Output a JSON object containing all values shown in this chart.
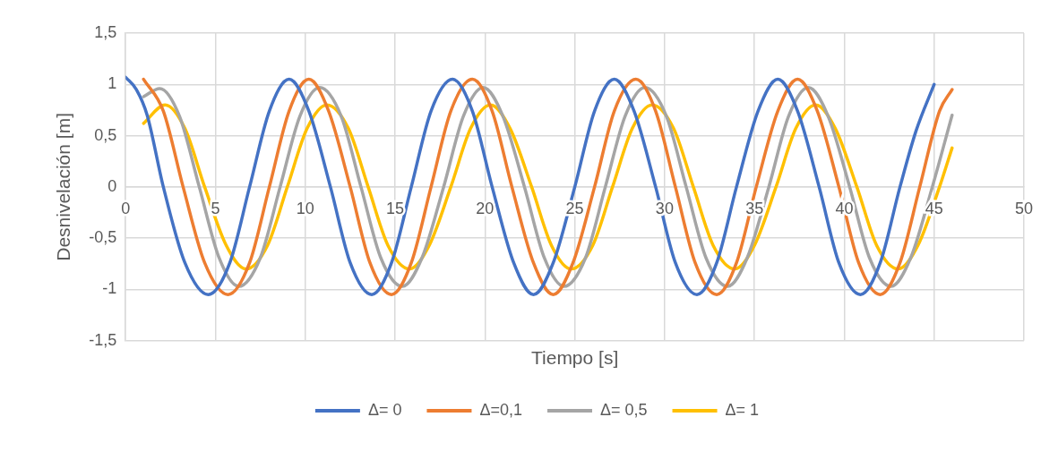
{
  "chart_data": {
    "type": "line",
    "xlabel": "Tiempo [s]",
    "ylabel": "Desnivelación [m]",
    "xlim": [
      0,
      50
    ],
    "xticks": [
      0,
      5,
      10,
      15,
      20,
      25,
      30,
      35,
      40,
      45,
      50
    ],
    "ylim": [
      -1.5,
      1.5
    ],
    "yticks": [
      {
        "value": -1.5,
        "label": "-1,5"
      },
      -1,
      {
        "value": -0.5,
        "label": "-0,5"
      },
      0,
      {
        "value": 0.5,
        "label": "0,5"
      },
      1,
      {
        "value": 1.5,
        "label": "1,5"
      }
    ],
    "grid": true,
    "legend": "bottom",
    "marker": "none",
    "line_style": "solid",
    "series": [
      {
        "name": "Δ= 0",
        "color": "#4472c4",
        "x": [
          0,
          0.6,
          1.2,
          2.1,
          3.3,
          4.6,
          5.8,
          6.9,
          8.0,
          9.1,
          10.2,
          11.4,
          12.5,
          13.7,
          14.8,
          15.9,
          17.0,
          18.2,
          19.3,
          20.4,
          21.6,
          22.7,
          23.8,
          25.0,
          26.1,
          27.2,
          28.3,
          29.5,
          30.6,
          31.8,
          32.9,
          34.0,
          35.2,
          36.3,
          37.4,
          38.6,
          39.7,
          40.9,
          42.0,
          43.1,
          44.0,
          45
        ],
        "values": [
          1.07,
          0.95,
          0.7,
          0,
          -0.74,
          -1.05,
          -0.74,
          0,
          0.74,
          1.05,
          0.74,
          0,
          -0.74,
          -1.05,
          -0.74,
          0,
          0.74,
          1.05,
          0.74,
          0,
          -0.74,
          -1.05,
          -0.74,
          0,
          0.74,
          1.05,
          0.74,
          0,
          -0.74,
          -1.05,
          -0.74,
          0,
          0.74,
          1.05,
          0.74,
          0,
          -0.74,
          -1.05,
          -0.74,
          0,
          0.55,
          1.0
        ]
      },
      {
        "name": "Δ=0,1",
        "color": "#ed7d31",
        "x": [
          1,
          2.1,
          3.2,
          4.4,
          5.7,
          6.9,
          8.0,
          9.1,
          10.2,
          11.3,
          12.5,
          13.6,
          14.8,
          15.9,
          17.0,
          18.1,
          19.3,
          20.4,
          21.5,
          22.7,
          23.8,
          24.9,
          26.1,
          27.2,
          28.4,
          29.5,
          30.6,
          31.7,
          32.9,
          34.0,
          35.1,
          36.3,
          37.4,
          38.5,
          39.7,
          40.8,
          42.0,
          43.1,
          44.2,
          45.3,
          46
        ],
        "values": [
          1.05,
          0.74,
          0,
          -0.74,
          -1.05,
          -0.74,
          0,
          0.74,
          1.05,
          0.74,
          0,
          -0.74,
          -1.05,
          -0.74,
          0,
          0.74,
          1.05,
          0.74,
          0,
          -0.74,
          -1.05,
          -0.74,
          0,
          0.74,
          1.05,
          0.74,
          0,
          -0.74,
          -1.05,
          -0.74,
          0,
          0.74,
          1.05,
          0.74,
          0,
          -0.74,
          -1.05,
          -0.74,
          0,
          0.74,
          0.95
        ]
      },
      {
        "name": "Δ= 0,5",
        "color": "#a5a5a5",
        "x": [
          1,
          1.9,
          3.0,
          4.1,
          5.2,
          6.3,
          7.5,
          8.6,
          9.7,
          10.8,
          12.0,
          13.1,
          14.2,
          15.4,
          16.5,
          17.7,
          18.8,
          19.9,
          21.0,
          22.2,
          23.3,
          24.4,
          25.6,
          26.7,
          27.8,
          28.9,
          30.1,
          31.2,
          32.3,
          33.5,
          34.6,
          35.8,
          36.9,
          38.0,
          39.1,
          40.3,
          41.4,
          42.6,
          43.7,
          44.9,
          46
        ],
        "values": [
          0.88,
          0.96,
          0.69,
          0,
          -0.69,
          -0.97,
          -0.69,
          0,
          0.69,
          0.97,
          0.69,
          0,
          -0.69,
          -0.97,
          -0.69,
          0,
          0.69,
          0.97,
          0.69,
          0,
          -0.69,
          -0.97,
          -0.69,
          0,
          0.69,
          0.97,
          0.69,
          0,
          -0.69,
          -0.97,
          -0.69,
          0,
          0.69,
          0.97,
          0.69,
          0,
          -0.69,
          -0.97,
          -0.69,
          0,
          0.7
        ]
      },
      {
        "name": "Δ= 1",
        "color": "#ffc000",
        "x": [
          1,
          2.2,
          3.3,
          4.4,
          5.6,
          6.7,
          7.9,
          9.0,
          10.1,
          11.2,
          12.4,
          13.5,
          14.6,
          15.8,
          16.9,
          18.1,
          19.2,
          20.3,
          21.4,
          22.6,
          23.7,
          24.8,
          26.0,
          27.1,
          28.2,
          29.3,
          30.5,
          31.6,
          32.7,
          33.9,
          35.0,
          36.2,
          37.3,
          38.4,
          39.5,
          40.7,
          41.8,
          43.0,
          44.1,
          45.3,
          46
        ],
        "values": [
          0.62,
          0.8,
          0.57,
          0,
          -0.57,
          -0.8,
          -0.57,
          0,
          0.57,
          0.8,
          0.57,
          0,
          -0.57,
          -0.8,
          -0.57,
          0,
          0.57,
          0.8,
          0.57,
          0,
          -0.57,
          -0.8,
          -0.57,
          0,
          0.57,
          0.8,
          0.57,
          0,
          -0.57,
          -0.8,
          -0.57,
          0,
          0.57,
          0.8,
          0.57,
          0,
          -0.57,
          -0.8,
          -0.57,
          0,
          0.38
        ]
      }
    ]
  }
}
